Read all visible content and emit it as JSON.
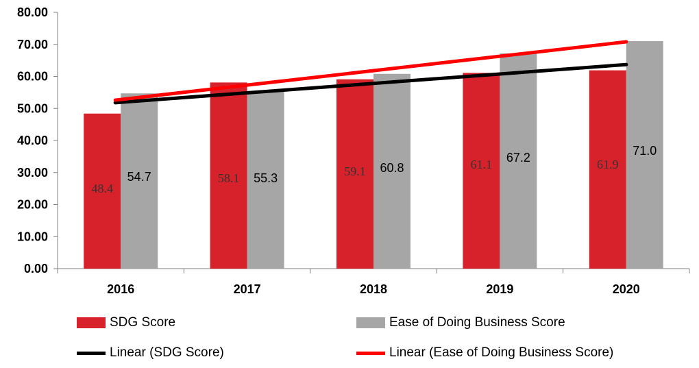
{
  "chart_data": {
    "type": "bar",
    "categories": [
      "2016",
      "2017",
      "2018",
      "2019",
      "2020"
    ],
    "series": [
      {
        "name": "SDG Score",
        "values": [
          48.4,
          58.1,
          59.1,
          61.1,
          61.9
        ],
        "color": "#d7222b"
      },
      {
        "name": "Ease of Doing Business Score",
        "values": [
          54.7,
          55.3,
          60.8,
          67.2,
          71.0
        ],
        "color": "#a6a6a6"
      }
    ],
    "trendlines": [
      {
        "name": "Linear (SDG Score)",
        "of": "SDG Score",
        "color": "#000000",
        "start": 51.8,
        "end": 63.7
      },
      {
        "name": "Linear (Ease of Doing Business Score)",
        "of": "Ease of Doing Business Score",
        "color": "#ff0000",
        "start": 52.6,
        "end": 70.8
      }
    ],
    "data_labels": {
      "sdg": [
        "48.4",
        "58.1",
        "59.1",
        "61.1",
        "61.9"
      ],
      "eodb": [
        "54.7",
        "55.3",
        "60.8",
        "67.2",
        "71.0"
      ]
    },
    "ylim": [
      0,
      80
    ],
    "yticks": [
      "0.00",
      "10.00",
      "20.00",
      "30.00",
      "40.00",
      "50.00",
      "60.00",
      "70.00",
      "80.00"
    ],
    "grid": false,
    "legend_position": "bottom",
    "title": "",
    "xlabel": "",
    "ylabel": ""
  }
}
